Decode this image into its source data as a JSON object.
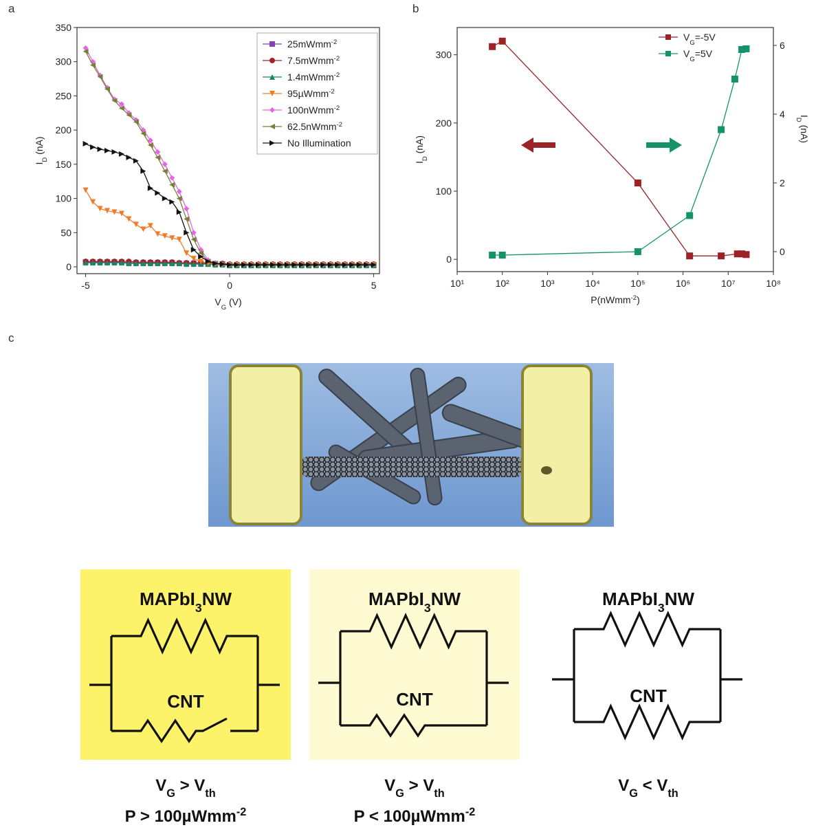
{
  "chart_data": [
    {
      "type": "line",
      "panel": "a",
      "xlabel": [
        {
          "t": "V"
        },
        {
          "t": "G",
          "sub": true
        },
        {
          "t": " (V)"
        }
      ],
      "ylabel": [
        {
          "t": "I"
        },
        {
          "t": "D",
          "sub": true
        },
        {
          "t": " (nA)"
        }
      ],
      "xlim": [
        -5.3,
        5.2
      ],
      "ylim": [
        -10,
        350
      ],
      "xticks": [
        -5,
        0,
        5
      ],
      "yticks": [
        0,
        50,
        100,
        150,
        200,
        250,
        300,
        350
      ],
      "legend": "upper right",
      "legend_frame": true,
      "x": [
        -5,
        -4.75,
        -4.5,
        -4.25,
        -4,
        -3.75,
        -3.5,
        -3.25,
        -3,
        -2.75,
        -2.5,
        -2.25,
        -2,
        -1.75,
        -1.5,
        -1.25,
        -1,
        -0.75,
        -0.5,
        -0.25,
        0,
        0.25,
        0.5,
        0.75,
        1,
        1.25,
        1.5,
        1.75,
        2,
        2.25,
        2.5,
        2.75,
        3,
        3.25,
        3.5,
        3.75,
        4,
        4.25,
        4.5,
        4.75,
        5
      ],
      "series": [
        {
          "name": [
            {
              "t": "25mWmm"
            },
            {
              "t": "-2",
              "sup": true
            }
          ],
          "color": "#8a3fb8",
          "marker": "square",
          "values": [
            7,
            7,
            7,
            7,
            7,
            7,
            6,
            6,
            6,
            6,
            6,
            6,
            6,
            5,
            5,
            5,
            5,
            4,
            4,
            4,
            3,
            3,
            3,
            3,
            3,
            3,
            3,
            3,
            3,
            3,
            3,
            3,
            3,
            3,
            3,
            3,
            3,
            3,
            3,
            3,
            3
          ]
        },
        {
          "name": [
            {
              "t": "7.5mWmm"
            },
            {
              "t": "-2",
              "sup": true
            }
          ],
          "color": "#a3222a",
          "marker": "circle",
          "values": [
            8,
            8,
            8,
            8,
            8,
            8,
            8,
            7,
            7,
            7,
            7,
            7,
            7,
            6,
            6,
            6,
            6,
            5,
            5,
            5,
            4,
            4,
            4,
            4,
            4,
            4,
            4,
            4,
            4,
            4,
            4,
            4,
            4,
            4,
            4,
            4,
            4,
            4,
            4,
            4,
            4
          ]
        },
        {
          "name": [
            {
              "t": "1.4mWmm"
            },
            {
              "t": "-2",
              "sup": true
            }
          ],
          "color": "#168a5c",
          "marker": "triangle-up",
          "values": [
            6,
            6,
            6,
            6,
            6,
            6,
            5,
            5,
            5,
            5,
            5,
            5,
            5,
            5,
            4,
            4,
            4,
            4,
            3,
            3,
            2,
            2,
            2,
            2,
            2,
            2,
            2,
            2,
            2,
            2,
            2,
            2,
            2,
            2,
            2,
            2,
            2,
            2,
            2,
            2,
            2
          ]
        },
        {
          "name": [
            {
              "t": "95µWmm"
            },
            {
              "t": "-2",
              "sup": true
            }
          ],
          "color": "#f37b28",
          "marker": "triangle-down",
          "values": [
            112,
            95,
            85,
            82,
            80,
            78,
            70,
            62,
            55,
            60,
            48,
            45,
            42,
            40,
            20,
            12,
            8,
            5,
            4,
            3,
            3,
            3,
            3,
            3,
            3,
            3,
            3,
            3,
            3,
            3,
            3,
            3,
            3,
            3,
            3,
            3,
            3,
            3,
            3,
            3,
            3
          ]
        },
        {
          "name": [
            {
              "t": "100nWmm"
            },
            {
              "t": "-2",
              "sup": true
            }
          ],
          "color": "#e466e4",
          "marker": "diamond",
          "values": [
            320,
            300,
            280,
            262,
            245,
            238,
            225,
            215,
            200,
            185,
            168,
            150,
            130,
            110,
            85,
            50,
            25,
            10,
            5,
            4,
            3,
            3,
            3,
            3,
            3,
            3,
            3,
            3,
            3,
            3,
            3,
            3,
            3,
            3,
            3,
            3,
            3,
            3,
            3,
            3,
            3
          ]
        },
        {
          "name": [
            {
              "t": "62.5nWmm"
            },
            {
              "t": "-2",
              "sup": true
            }
          ],
          "color": "#7b7d3c",
          "marker": "triangle-left",
          "values": [
            315,
            295,
            278,
            260,
            243,
            232,
            222,
            212,
            195,
            178,
            160,
            140,
            120,
            100,
            70,
            40,
            20,
            8,
            5,
            4,
            3,
            3,
            3,
            3,
            3,
            3,
            3,
            3,
            3,
            3,
            3,
            3,
            3,
            3,
            3,
            3,
            3,
            3,
            3,
            3,
            3
          ]
        },
        {
          "name": [
            {
              "t": "No Illumination"
            }
          ],
          "color": "#111111",
          "marker": "triangle-right",
          "values": [
            180,
            175,
            172,
            170,
            168,
            165,
            160,
            155,
            140,
            115,
            108,
            100,
            95,
            80,
            50,
            25,
            15,
            8,
            5,
            4,
            3,
            3,
            3,
            3,
            3,
            3,
            3,
            3,
            3,
            3,
            3,
            3,
            3,
            3,
            3,
            3,
            3,
            3,
            3,
            3,
            3
          ]
        }
      ]
    },
    {
      "type": "line",
      "panel": "b",
      "xscale": "log",
      "xlabel": [
        {
          "t": "P(nWmm"
        },
        {
          "t": "-2",
          "sup": true
        },
        {
          "t": ")"
        }
      ],
      "ylabel": [
        {
          "t": "I"
        },
        {
          "t": "D",
          "sub": true
        },
        {
          "t": " (nA)"
        }
      ],
      "y2label": [
        {
          "t": "I"
        },
        {
          "t": "D",
          "sub": true
        },
        {
          "t": " (nA)"
        }
      ],
      "xlim": [
        10,
        100000000
      ],
      "ylim": [
        -18,
        340
      ],
      "y2lim": [
        -0.58,
        6.52
      ],
      "xticks": [
        {
          "value": 10,
          "label": "10¹"
        },
        {
          "value": 100,
          "label": "10²"
        },
        {
          "value": 1000,
          "label": "10³"
        },
        {
          "value": 10000,
          "label": "10⁴"
        },
        {
          "value": 100000,
          "label": "10⁵"
        },
        {
          "value": 1000000,
          "label": "10⁶"
        },
        {
          "value": 10000000,
          "label": "10⁷"
        },
        {
          "value": 100000000,
          "label": "10⁸"
        }
      ],
      "yticks": [
        0,
        100,
        200,
        300
      ],
      "y2ticks": [
        0,
        2,
        4,
        6
      ],
      "legend": "upper center",
      "legend_frame": false,
      "series": [
        {
          "name": [
            {
              "t": "V"
            },
            {
              "t": "G",
              "sub": true
            },
            {
              "t": "=-5V"
            }
          ],
          "color": "#9b2226",
          "marker": "square",
          "x": [
            60,
            100,
            100000,
            1400000,
            7000000,
            16000000,
            20000000,
            25000000
          ],
          "values": [
            312,
            320,
            112,
            5,
            5,
            8,
            8,
            7
          ]
        },
        {
          "name": [
            {
              "t": "V"
            },
            {
              "t": "G",
              "sub": true
            },
            {
              "t": "=5V"
            }
          ],
          "color": "#14936a",
          "marker": "square",
          "axis": "y2",
          "x": [
            60,
            100,
            100000,
            1400000,
            7000000,
            14000000,
            20000000,
            25000000
          ],
          "values": [
            -0.1,
            -0.1,
            0,
            1.05,
            3.55,
            5.02,
            5.88,
            5.9
          ]
        }
      ]
    }
  ],
  "panel_c": {
    "label": "c",
    "circuits": [
      {
        "color": "#fdf36a",
        "nw": [
          {
            "t": "MAPbI"
          },
          {
            "t": "3",
            "sub": true
          },
          {
            "t": "NW"
          }
        ],
        "cnt": "CNT",
        "cond1": [
          {
            "t": "V"
          },
          {
            "t": "G",
            "sub": true
          },
          {
            "t": " > V"
          },
          {
            "t": "th",
            "sub": true
          }
        ],
        "cond2": [
          {
            "t": "P > 100µWmm"
          },
          {
            "t": "-2",
            "sup": true
          }
        ]
      },
      {
        "color": "#fefbd2",
        "nw": [
          {
            "t": "MAPbI"
          },
          {
            "t": "3",
            "sub": true
          },
          {
            "t": "NW"
          }
        ],
        "cnt": "CNT",
        "cond1": [
          {
            "t": "V"
          },
          {
            "t": "G",
            "sub": true
          },
          {
            "t": " > V"
          },
          {
            "t": "th",
            "sub": true
          }
        ],
        "cond2": [
          {
            "t": "P < 100µWmm"
          },
          {
            "t": "-2",
            "sup": true
          }
        ]
      },
      {
        "color": "#ffffff",
        "nw": [
          {
            "t": "MAPbI"
          },
          {
            "t": "3",
            "sub": true
          },
          {
            "t": "NW"
          }
        ],
        "cnt": "CNT",
        "cond1": [
          {
            "t": "V"
          },
          {
            "t": "G",
            "sub": true
          },
          {
            "t": " < V"
          },
          {
            "t": "th",
            "sub": true
          }
        ]
      }
    ]
  }
}
